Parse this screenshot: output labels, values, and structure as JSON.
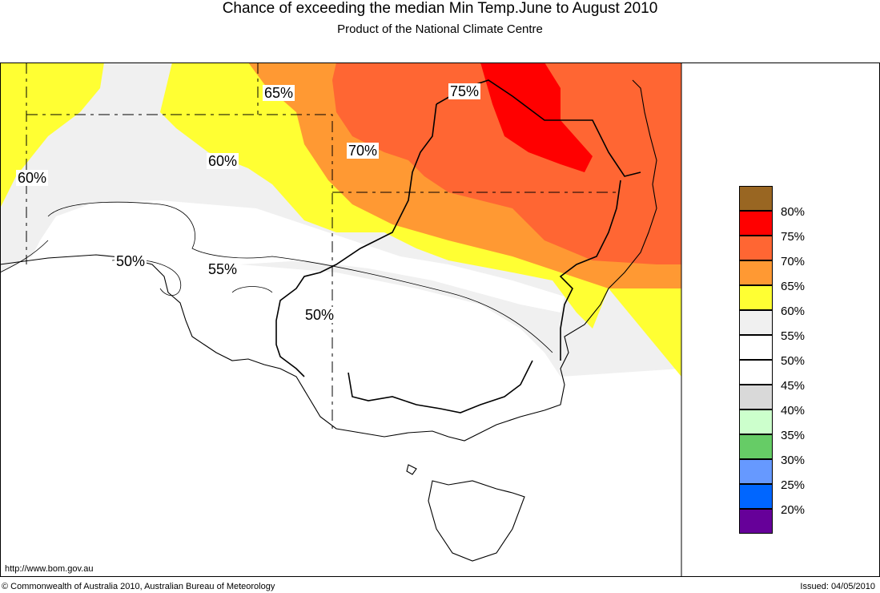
{
  "header": {
    "title": "Chance of exceeding the median Min Temp.June to August 2010",
    "subtitle": "Product of the National Climate Centre"
  },
  "map": {
    "labels": [
      "75%",
      "65%",
      "70%",
      "60%",
      "60%",
      "50%",
      "55%",
      "50%"
    ]
  },
  "legend": {
    "items": [
      {
        "label": "80%",
        "color": "#996622"
      },
      {
        "label": "75%",
        "color": "#ff0000"
      },
      {
        "label": "70%",
        "color": "#ff6633"
      },
      {
        "label": "65%",
        "color": "#ff9933"
      },
      {
        "label": "60%",
        "color": "#ffff33"
      },
      {
        "label": "55%",
        "color": "#f0f0f0"
      },
      {
        "label": "50%",
        "color": "#ffffff"
      },
      {
        "label": "45%",
        "color": "#ffffff"
      },
      {
        "label": "40%",
        "color": "#d9d9d9"
      },
      {
        "label": "35%",
        "color": "#ccffcc"
      },
      {
        "label": "30%",
        "color": "#66cc66"
      },
      {
        "label": "25%",
        "color": "#6699ff"
      },
      {
        "label": "20%",
        "color": "#0066ff"
      },
      {
        "label": "",
        "color": "#660099"
      }
    ]
  },
  "footer": {
    "url": "http://www.bom.gov.au",
    "copyright": "© Commonwealth of Australia 2010, Australian Bureau of Meteorology",
    "issued": "Issued: 04/05/2010"
  }
}
